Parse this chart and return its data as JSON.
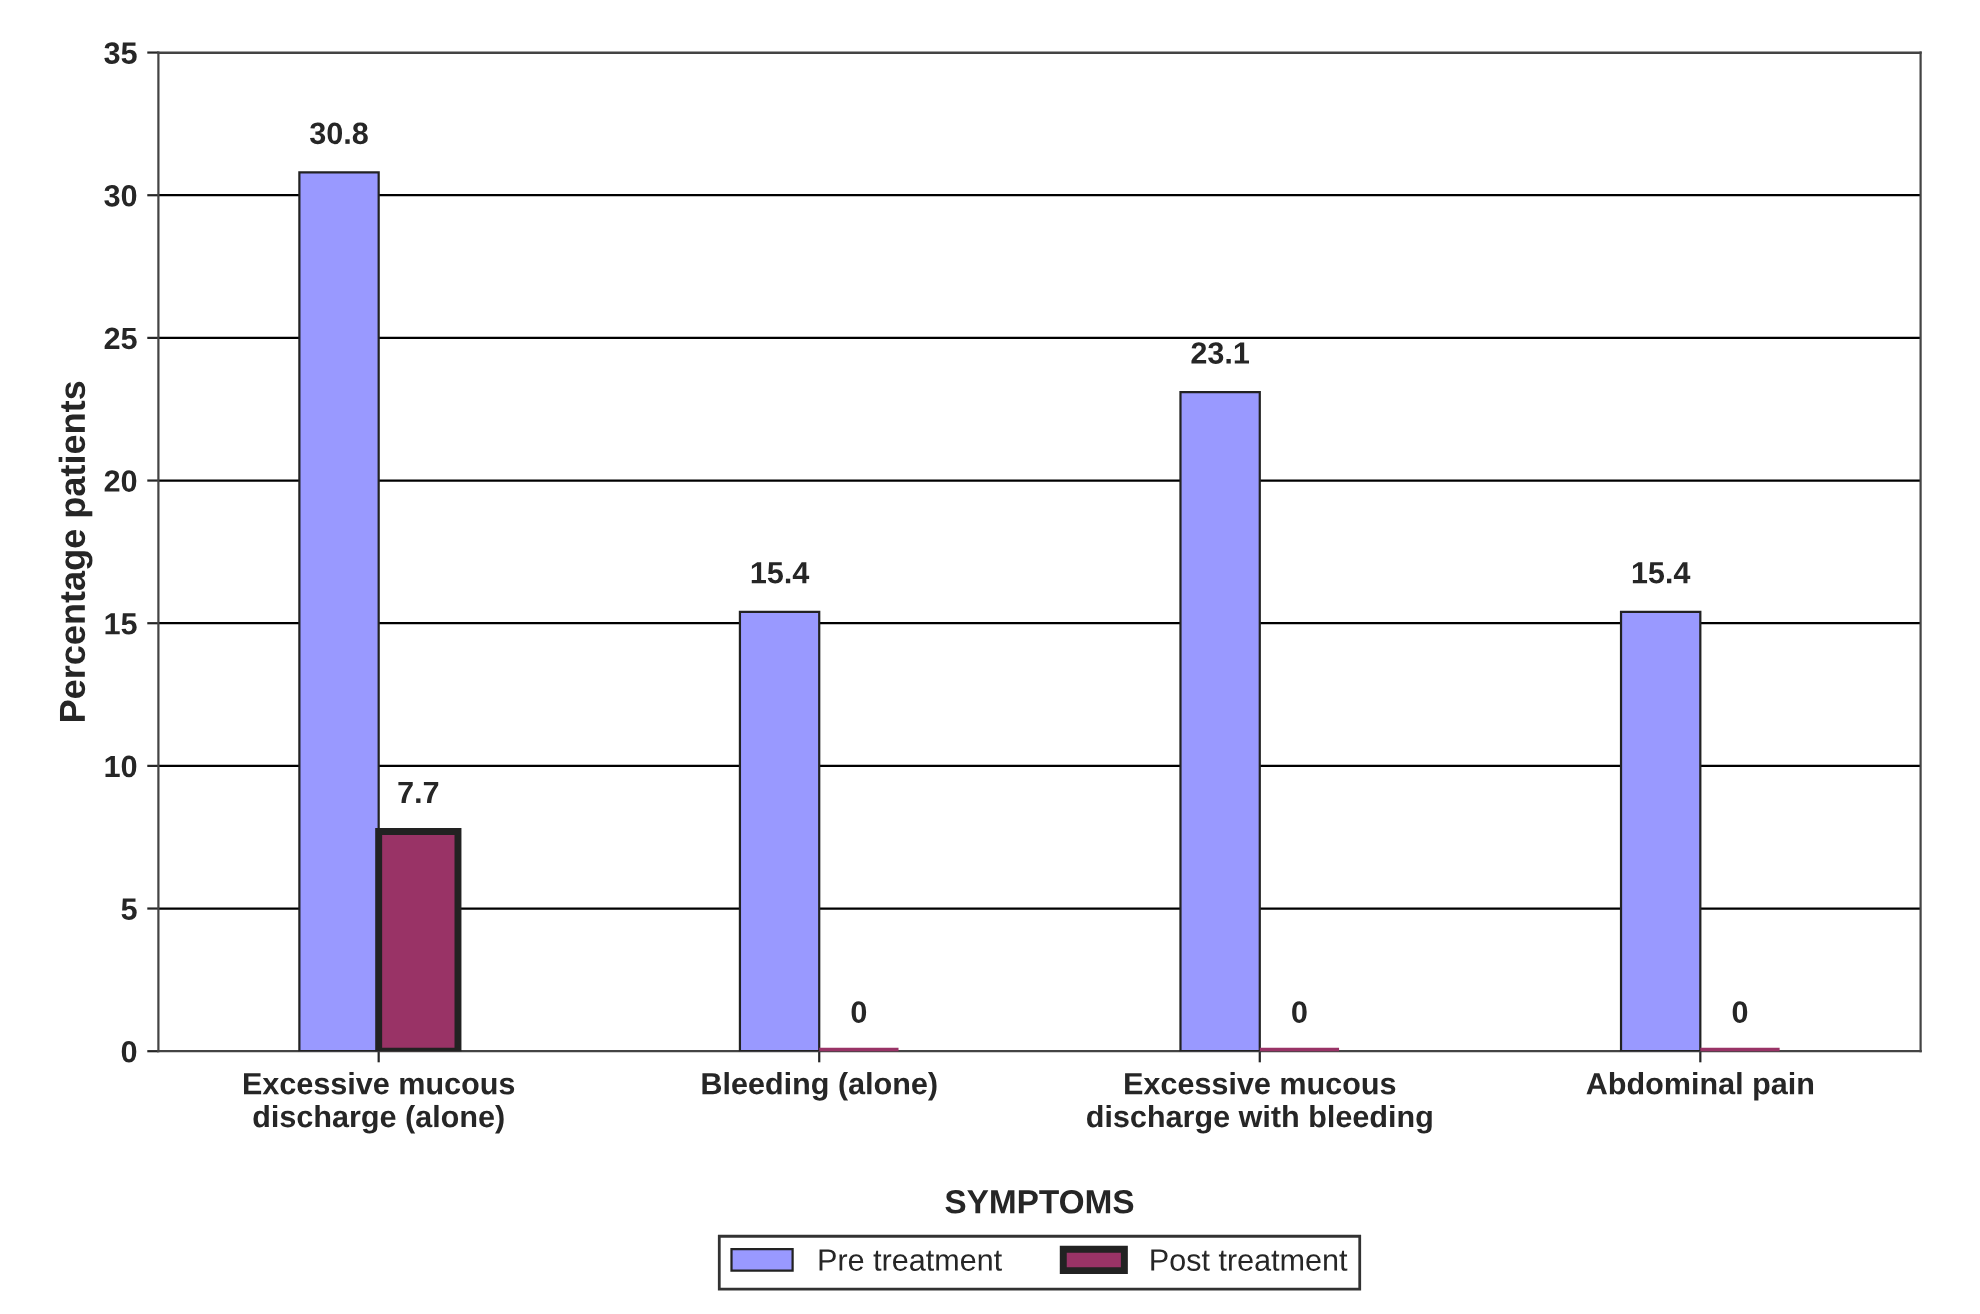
{
  "chart_data": {
    "type": "bar",
    "categories": [
      "Excessive mucous\ndischarge (alone)",
      "Bleeding (alone)",
      "Excessive mucous\ndischarge with bleeding",
      "Abdominal pain"
    ],
    "series": [
      {
        "name": "Pre treatment",
        "color": "#9999ff",
        "values": [
          30.8,
          15.4,
          23.1,
          15.4
        ]
      },
      {
        "name": "Post treatment",
        "color": "#993366",
        "values": [
          7.7,
          0,
          0,
          0
        ]
      }
    ],
    "xlabel": "SYMPTOMS",
    "ylabel": "Percentage patients",
    "ylim": [
      0,
      35
    ],
    "yticks": [
      0,
      5,
      10,
      15,
      20,
      25,
      30,
      35
    ],
    "grid": "y",
    "legend": "bottom",
    "data_labels": true
  }
}
